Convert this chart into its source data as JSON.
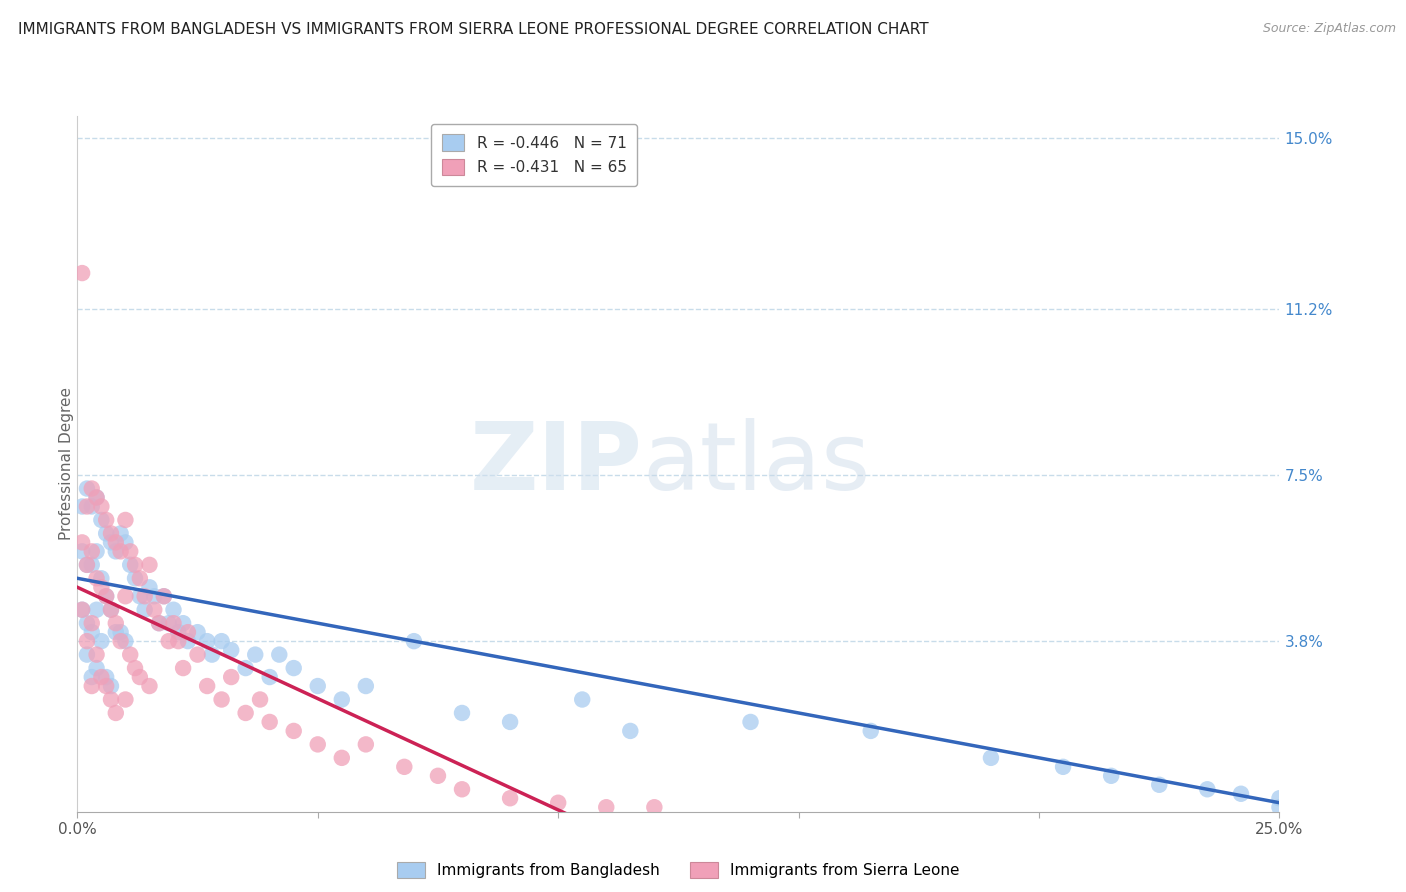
{
  "title": "IMMIGRANTS FROM BANGLADESH VS IMMIGRANTS FROM SIERRA LEONE PROFESSIONAL DEGREE CORRELATION CHART",
  "source": "Source: ZipAtlas.com",
  "ylabel": "Professional Degree",
  "xlim": [
    0.0,
    0.25
  ],
  "ylim": [
    0.0,
    0.155
  ],
  "xtick_vals": [
    0.0,
    0.05,
    0.1,
    0.15,
    0.2,
    0.25
  ],
  "xtick_labels": [
    "0.0%",
    "",
    "",
    "",
    "",
    "25.0%"
  ],
  "ytick_right_values": [
    0.0,
    0.038,
    0.075,
    0.112,
    0.15
  ],
  "ytick_right_labels": [
    "",
    "3.8%",
    "7.5%",
    "11.2%",
    "15.0%"
  ],
  "grid_color": "#c8dcea",
  "background_color": "#ffffff",
  "watermark_zip": "ZIP",
  "watermark_atlas": "atlas",
  "blue_trend_start_y": 0.052,
  "blue_trend_end_y": 0.002,
  "pink_trend_start_y": 0.05,
  "pink_trend_end_x": 0.125,
  "series": [
    {
      "label": "Immigrants from Bangladesh",
      "color": "#a8ccf0",
      "R": -0.446,
      "N": 71,
      "trend_color": "#3366bb",
      "x": [
        0.001,
        0.001,
        0.001,
        0.002,
        0.002,
        0.002,
        0.002,
        0.003,
        0.003,
        0.003,
        0.003,
        0.004,
        0.004,
        0.004,
        0.004,
        0.005,
        0.005,
        0.005,
        0.006,
        0.006,
        0.006,
        0.007,
        0.007,
        0.007,
        0.008,
        0.008,
        0.009,
        0.009,
        0.01,
        0.01,
        0.011,
        0.012,
        0.013,
        0.014,
        0.015,
        0.016,
        0.017,
        0.018,
        0.019,
        0.02,
        0.021,
        0.022,
        0.023,
        0.025,
        0.027,
        0.028,
        0.03,
        0.032,
        0.035,
        0.037,
        0.04,
        0.042,
        0.045,
        0.05,
        0.055,
        0.06,
        0.07,
        0.08,
        0.09,
        0.105,
        0.115,
        0.14,
        0.165,
        0.19,
        0.205,
        0.215,
        0.225,
        0.235,
        0.242,
        0.25,
        0.25
      ],
      "y": [
        0.058,
        0.045,
        0.068,
        0.072,
        0.055,
        0.042,
        0.035,
        0.068,
        0.055,
        0.04,
        0.03,
        0.07,
        0.058,
        0.045,
        0.032,
        0.065,
        0.052,
        0.038,
        0.062,
        0.048,
        0.03,
        0.06,
        0.045,
        0.028,
        0.058,
        0.04,
        0.062,
        0.04,
        0.06,
        0.038,
        0.055,
        0.052,
        0.048,
        0.045,
        0.05,
        0.048,
        0.042,
        0.048,
        0.042,
        0.045,
        0.04,
        0.042,
        0.038,
        0.04,
        0.038,
        0.035,
        0.038,
        0.036,
        0.032,
        0.035,
        0.03,
        0.035,
        0.032,
        0.028,
        0.025,
        0.028,
        0.038,
        0.022,
        0.02,
        0.025,
        0.018,
        0.02,
        0.018,
        0.012,
        0.01,
        0.008,
        0.006,
        0.005,
        0.004,
        0.003,
        0.001
      ]
    },
    {
      "label": "Immigrants from Sierra Leone",
      "color": "#f0a0b8",
      "R": -0.431,
      "N": 65,
      "trend_color": "#cc2255",
      "x": [
        0.001,
        0.001,
        0.001,
        0.002,
        0.002,
        0.002,
        0.003,
        0.003,
        0.003,
        0.003,
        0.004,
        0.004,
        0.004,
        0.005,
        0.005,
        0.005,
        0.006,
        0.006,
        0.006,
        0.007,
        0.007,
        0.007,
        0.008,
        0.008,
        0.008,
        0.009,
        0.009,
        0.01,
        0.01,
        0.01,
        0.011,
        0.011,
        0.012,
        0.012,
        0.013,
        0.013,
        0.014,
        0.015,
        0.015,
        0.016,
        0.017,
        0.018,
        0.019,
        0.02,
        0.021,
        0.022,
        0.023,
        0.025,
        0.027,
        0.03,
        0.032,
        0.035,
        0.038,
        0.04,
        0.045,
        0.05,
        0.055,
        0.06,
        0.068,
        0.075,
        0.08,
        0.09,
        0.1,
        0.11,
        0.12
      ],
      "y": [
        0.12,
        0.06,
        0.045,
        0.068,
        0.055,
        0.038,
        0.072,
        0.058,
        0.042,
        0.028,
        0.07,
        0.052,
        0.035,
        0.068,
        0.05,
        0.03,
        0.065,
        0.048,
        0.028,
        0.062,
        0.045,
        0.025,
        0.06,
        0.042,
        0.022,
        0.058,
        0.038,
        0.065,
        0.048,
        0.025,
        0.058,
        0.035,
        0.055,
        0.032,
        0.052,
        0.03,
        0.048,
        0.055,
        0.028,
        0.045,
        0.042,
        0.048,
        0.038,
        0.042,
        0.038,
        0.032,
        0.04,
        0.035,
        0.028,
        0.025,
        0.03,
        0.022,
        0.025,
        0.02,
        0.018,
        0.015,
        0.012,
        0.015,
        0.01,
        0.008,
        0.005,
        0.003,
        0.002,
        0.001,
        0.001
      ]
    }
  ]
}
